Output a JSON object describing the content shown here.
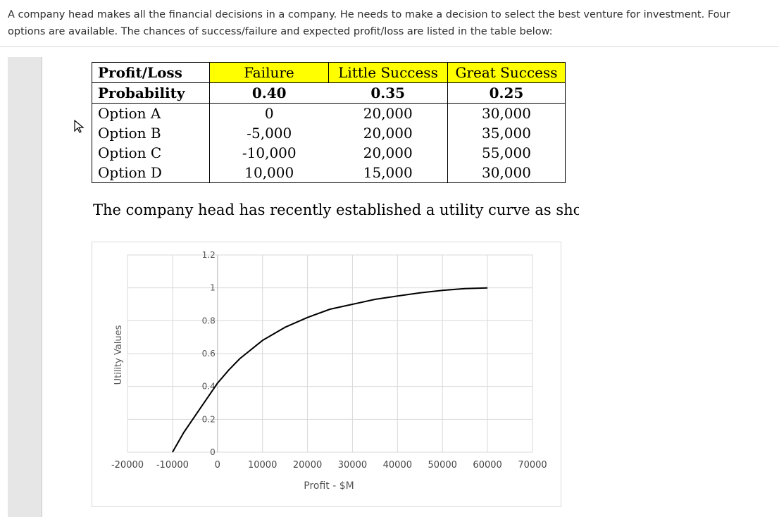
{
  "intro_text": "A company head makes all the financial decisions in a company. He needs to make a decision to select the best venture for investment. Four options are available. The chances of success/failure and expected profit/loss are listed in the table below:",
  "table": {
    "header": [
      "Profit/Loss",
      "Failure",
      "Little Success",
      "Great Success"
    ],
    "probability": [
      "Probability",
      "0.40",
      "0.35",
      "0.25"
    ],
    "rows": [
      [
        "Option A",
        "0",
        "20,000",
        "30,000"
      ],
      [
        "Option B",
        "-5,000",
        "20,000",
        "35,000"
      ],
      [
        "Option C",
        "-10,000",
        "20,000",
        "55,000"
      ],
      [
        "Option D",
        "10,000",
        "15,000",
        "30,000"
      ]
    ],
    "header_highlight_color": "#ffff00"
  },
  "statement": "The company head has recently established a utility curve as shown bel",
  "chart_data": {
    "type": "line",
    "xlabel": "Profit - $M",
    "ylabel": "Utility Values",
    "xlim": [
      -20000,
      70000
    ],
    "ylim": [
      0,
      1.2
    ],
    "x_ticks": [
      "-20000",
      "-10000",
      "0",
      "10000",
      "20000",
      "30000",
      "40000",
      "50000",
      "60000",
      "70000"
    ],
    "y_ticks": [
      "0",
      "0.2",
      "0.4",
      "0.6",
      "0.8",
      "1",
      "1.2"
    ],
    "grid": true,
    "series": [
      {
        "color": "#000000",
        "x": [
          -10000,
          -7500,
          -5000,
          -2500,
          0,
          2500,
          5000,
          10000,
          15000,
          20000,
          25000,
          30000,
          35000,
          40000,
          45000,
          50000,
          55000,
          60000
        ],
        "y": [
          0.0,
          0.12,
          0.22,
          0.32,
          0.42,
          0.5,
          0.57,
          0.68,
          0.76,
          0.82,
          0.87,
          0.9,
          0.93,
          0.95,
          0.97,
          0.985,
          0.995,
          1.0
        ]
      }
    ]
  }
}
